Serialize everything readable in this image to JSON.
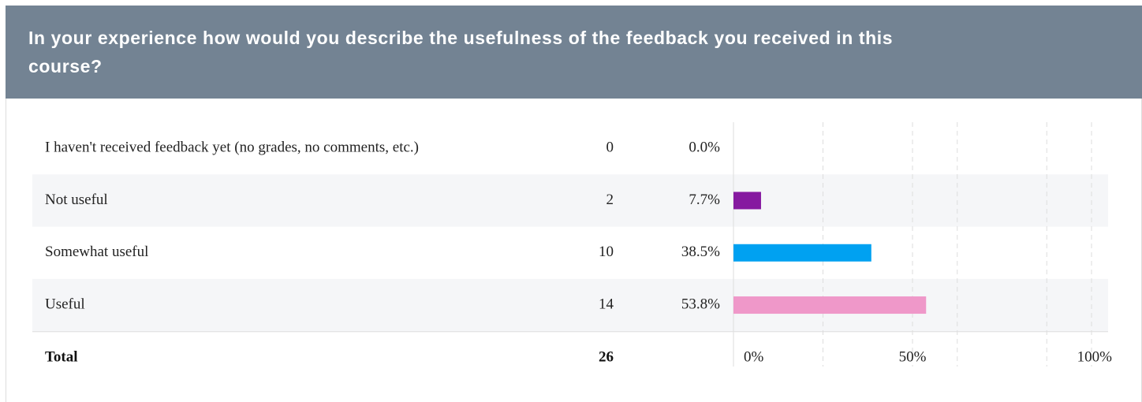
{
  "chart_data": {
    "type": "bar",
    "title": "In your experience how would you describe the usefulness of the feedback you received in this course?",
    "categories": [
      "I haven't received feedback yet (no grades, no comments, etc.)",
      "Not useful",
      "Somewhat useful",
      "Useful"
    ],
    "counts": [
      0,
      2,
      10,
      14
    ],
    "values": [
      0,
      7.7,
      38.5,
      53.8
    ],
    "value_labels": [
      "0.0%",
      "7.7%",
      "38.5%",
      "53.8%"
    ],
    "colors": [
      null,
      "#861aa0",
      "#00a1f1",
      "#ef98c9"
    ],
    "total_label": "Total",
    "total": 26,
    "xlim": [
      0,
      100
    ],
    "xticks": [
      {
        "value": 0,
        "label": "0%"
      },
      {
        "value": 50,
        "label": "50%"
      },
      {
        "value": 100,
        "label": "100%"
      }
    ],
    "grid_x": [
      25,
      50,
      62.5,
      87.5,
      100
    ]
  }
}
